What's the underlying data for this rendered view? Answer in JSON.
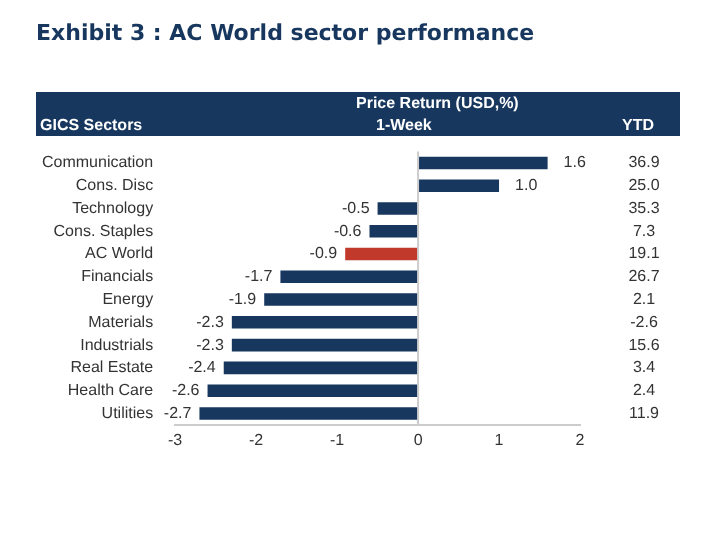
{
  "chart_data": {
    "type": "bar",
    "orientation": "horizontal",
    "title": "Exhibit 3 : AC World sector performance",
    "ylabel": "GICS Sectors",
    "categories": [
      "Communication",
      "Cons. Disc",
      "Technology",
      "Cons. Staples",
      "AC World",
      "Financials",
      "Energy",
      "Materials",
      "Industrials",
      "Real Estate",
      "Health Care",
      "Utilities"
    ],
    "values": [
      1.6,
      1.0,
      -0.5,
      -0.6,
      -0.9,
      -1.7,
      -1.9,
      -2.3,
      -2.3,
      -2.4,
      -2.6,
      -2.7
    ],
    "value_labels": [
      "1.6",
      "1.0",
      "-0.5",
      "-0.6",
      "-0.9",
      "-1.7",
      "-1.9",
      "-2.3",
      "-2.3",
      "-2.4",
      "-2.6",
      "-2.7"
    ],
    "colors": [
      "#17375e",
      "#17375e",
      "#17375e",
      "#17375e",
      "#c0392b",
      "#17375e",
      "#17375e",
      "#17375e",
      "#17375e",
      "#17375e",
      "#17375e",
      "#17375e"
    ],
    "xlim": [
      -3,
      2
    ],
    "xticks": [
      -3,
      -2,
      -1,
      0,
      1,
      2
    ],
    "grid": false,
    "ref_lines": [
      {
        "axis": "x",
        "value": 0,
        "color": "#cccccc"
      }
    ],
    "annotations": [
      "Price Return (USD,%)",
      "1-Week",
      "YTD",
      "36.9",
      "25.0",
      "35.3",
      "7.3",
      "19.1",
      "26.7",
      "2.1",
      "-2.6",
      "15.6",
      "3.4",
      "2.4",
      "11.9"
    ]
  }
}
